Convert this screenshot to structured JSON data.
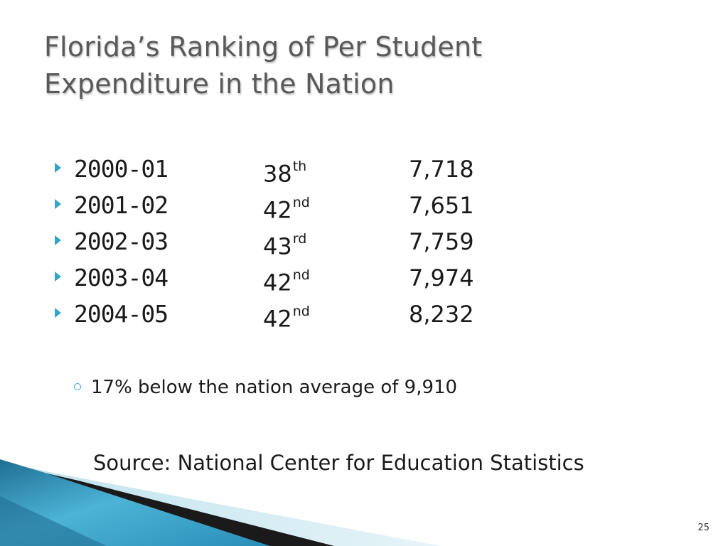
{
  "slide": {
    "title_line1": "Florida’s Ranking of Per Student",
    "title_line2": "Expenditure in the Nation",
    "rows": [
      {
        "year": "2000-01",
        "rank": "38",
        "suffix": "th",
        "value": "7,718"
      },
      {
        "year": "2001-02",
        "rank": "42",
        "suffix": "nd",
        "value": "7,651"
      },
      {
        "year": "2002-03",
        "rank": "43",
        "suffix": "rd",
        "value": "7,759"
      },
      {
        "year": "2003-04",
        "rank": "42",
        "suffix": "nd",
        "value": "7,974"
      },
      {
        "year": "2004-05",
        "rank": "42",
        "suffix": "nd",
        "value": "8,232"
      }
    ],
    "note": "17% below the nation average of 9,910",
    "source": "Source: National Center for Education Statistics",
    "page_number": "25"
  },
  "colors": {
    "accent": "#2fa6c6",
    "title": "#595959",
    "text": "#1a1a1a"
  },
  "icons": {
    "row_bullet": "triangle-bullet-icon",
    "note_bullet": "circle-bullet-icon"
  }
}
